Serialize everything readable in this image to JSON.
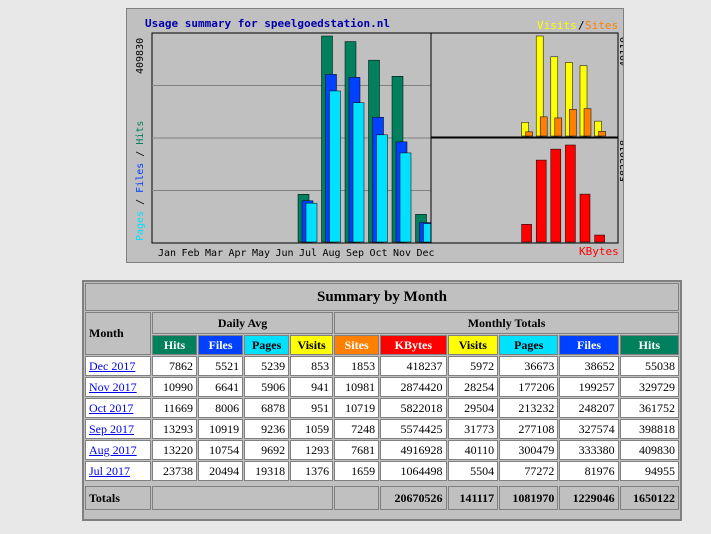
{
  "chart": {
    "title": "Usage summary for speelgoedstation.nl",
    "legend_visits": "Visits",
    "legend_sep": "/",
    "legend_sites": "Sites",
    "left_axis_max": "409830",
    "left_axis_title_pages": "Pages",
    "left_axis_title_files": "Files",
    "left_axis_title_hits": "Hits",
    "right_top_max": "40110",
    "right_bottom_max": "5822018",
    "kbytes_label": "KBytes",
    "months": [
      "Jan",
      "Feb",
      "Mar",
      "Apr",
      "May",
      "Jun",
      "Jul",
      "Aug",
      "Sep",
      "Oct",
      "Nov",
      "Dec"
    ],
    "colors": {
      "hits": "#00805c",
      "files": "#0040ff",
      "pages": "#00e0ff",
      "visits": "#ffff00",
      "sites": "#ff8000",
      "kbytes": "#ff0000"
    }
  },
  "chart_data": {
    "type": "bar",
    "categories": [
      "Jan",
      "Feb",
      "Mar",
      "Apr",
      "May",
      "Jun",
      "Jul",
      "Aug",
      "Sep",
      "Oct",
      "Nov",
      "Dec"
    ],
    "series": [
      {
        "name": "Hits",
        "values": [
          0,
          0,
          0,
          0,
          0,
          0,
          94955,
          409830,
          398818,
          361752,
          329729,
          55038
        ]
      },
      {
        "name": "Files",
        "values": [
          0,
          0,
          0,
          0,
          0,
          0,
          81976,
          333380,
          327574,
          248207,
          199257,
          38652
        ]
      },
      {
        "name": "Pages",
        "values": [
          0,
          0,
          0,
          0,
          0,
          0,
          77272,
          300479,
          277108,
          213232,
          177206,
          36673
        ]
      },
      {
        "name": "Visits",
        "values": [
          0,
          0,
          0,
          0,
          0,
          0,
          5504,
          40110,
          31773,
          29504,
          28254,
          5972
        ]
      },
      {
        "name": "Sites",
        "values": [
          0,
          0,
          0,
          0,
          0,
          0,
          1659,
          7681,
          7248,
          10719,
          10981,
          1853
        ]
      },
      {
        "name": "KBytes",
        "values": [
          0,
          0,
          0,
          0,
          0,
          0,
          1064498,
          4916928,
          5574425,
          5822018,
          2874420,
          418237
        ]
      }
    ]
  },
  "table": {
    "title": "Summary by Month",
    "month_header": "Month",
    "daily_avg": "Daily Avg",
    "monthly_totals": "Monthly Totals",
    "cols_daily": [
      "Hits",
      "Files",
      "Pages",
      "Visits"
    ],
    "cols_monthly": [
      "Sites",
      "KBytes",
      "Visits",
      "Pages",
      "Files",
      "Hits"
    ],
    "rows": [
      {
        "month": "Dec 2017",
        "d": [
          "7862",
          "5521",
          "5239",
          "853"
        ],
        "m": [
          "1853",
          "418237",
          "5972",
          "36673",
          "38652",
          "55038"
        ]
      },
      {
        "month": "Nov 2017",
        "d": [
          "10990",
          "6641",
          "5906",
          "941"
        ],
        "m": [
          "10981",
          "2874420",
          "28254",
          "177206",
          "199257",
          "329729"
        ]
      },
      {
        "month": "Oct 2017",
        "d": [
          "11669",
          "8006",
          "6878",
          "951"
        ],
        "m": [
          "10719",
          "5822018",
          "29504",
          "213232",
          "248207",
          "361752"
        ]
      },
      {
        "month": "Sep 2017",
        "d": [
          "13293",
          "10919",
          "9236",
          "1059"
        ],
        "m": [
          "7248",
          "5574425",
          "31773",
          "277108",
          "327574",
          "398818"
        ]
      },
      {
        "month": "Aug 2017",
        "d": [
          "13220",
          "10754",
          "9692",
          "1293"
        ],
        "m": [
          "7681",
          "4916928",
          "40110",
          "300479",
          "333380",
          "409830"
        ]
      },
      {
        "month": "Jul 2017",
        "d": [
          "23738",
          "20494",
          "19318",
          "1376"
        ],
        "m": [
          "1659",
          "1064498",
          "5504",
          "77272",
          "81976",
          "94955"
        ]
      }
    ],
    "totals_label": "Totals",
    "totals": [
      "20670526",
      "141117",
      "1081970",
      "1229046",
      "1650122"
    ]
  }
}
